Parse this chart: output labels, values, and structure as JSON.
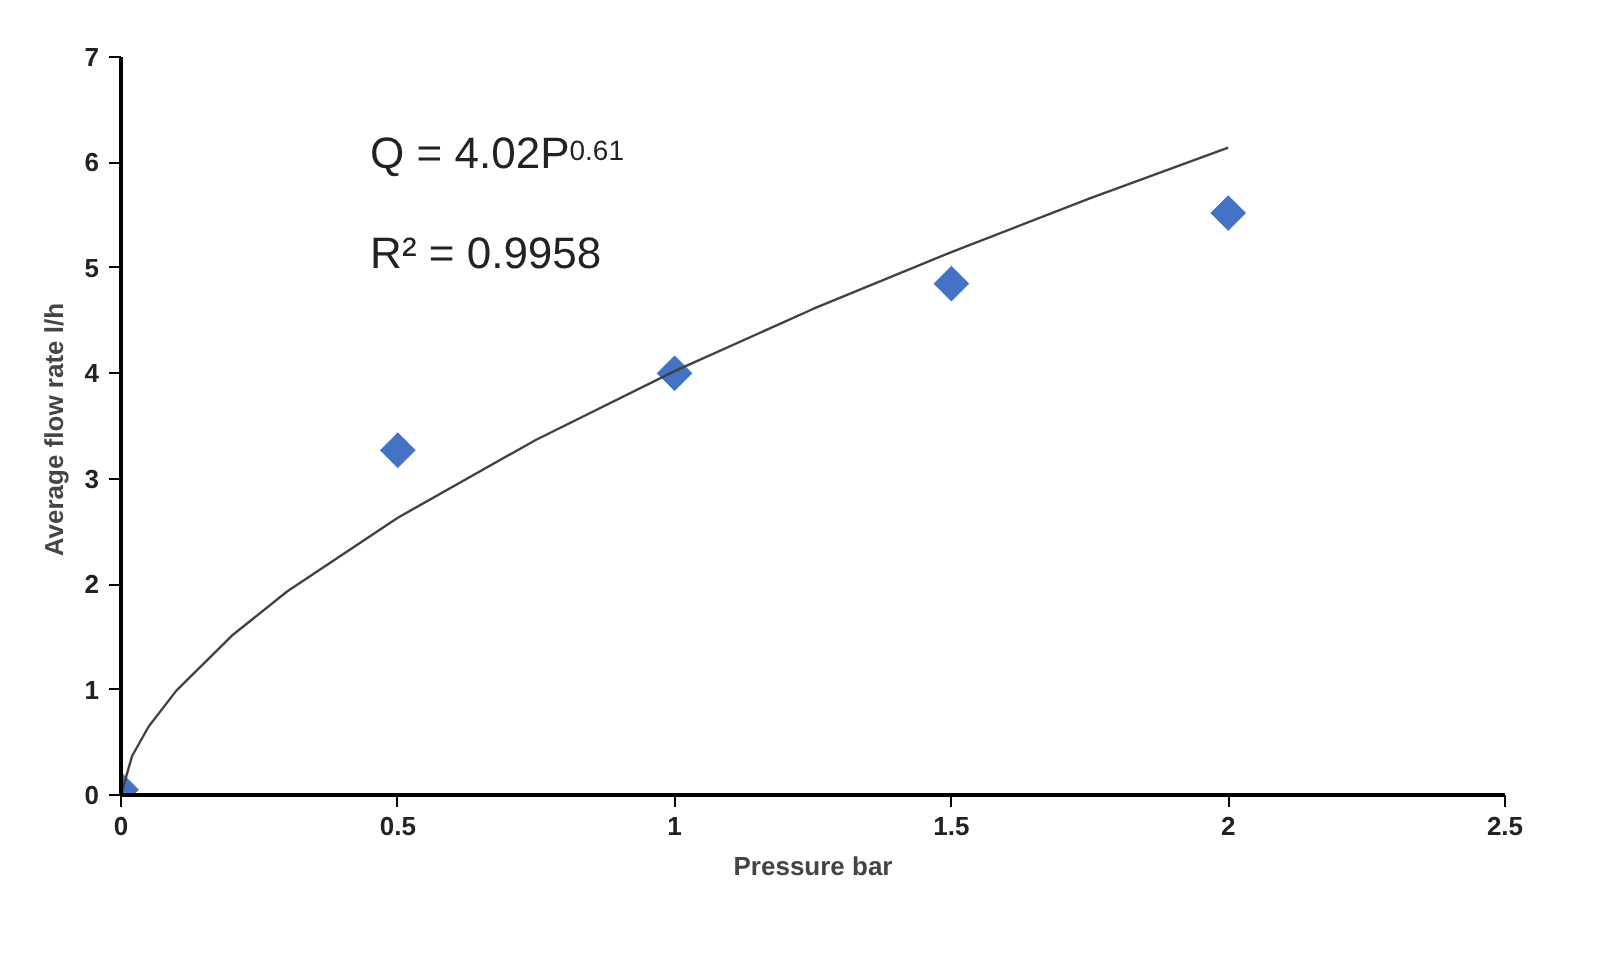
{
  "chart_data": {
    "type": "scatter",
    "xlabel": "Pressure bar",
    "ylabel": "Average flow rate  l/h",
    "x": [
      0,
      0.5,
      1,
      1.5,
      2
    ],
    "series": [
      {
        "color": "#4472c4",
        "marker": "diamond",
        "values": [
          0.05,
          3.27,
          4.0,
          4.85,
          5.52
        ]
      },
      {
        "type": "line",
        "color": "#404040",
        "line_style": "solid",
        "x": [
          0,
          0.02,
          0.05,
          0.1,
          0.2,
          0.3,
          0.5,
          0.75,
          1,
          1.25,
          1.5,
          1.75,
          2
        ],
        "values": [
          0,
          0.37,
          0.65,
          0.99,
          1.51,
          1.93,
          2.63,
          3.37,
          4.02,
          4.61,
          5.15,
          5.66,
          6.14
        ]
      }
    ],
    "annotations": [
      "Q = 4.02P$^{0.61}$",
      "R² = 0.9958"
    ],
    "xlim": [
      0,
      2.5
    ],
    "xticks": [
      0,
      0.5,
      1,
      1.5,
      2,
      2.5
    ],
    "ylim": [
      0,
      7
    ],
    "yticks": [
      0,
      1,
      2,
      3,
      4,
      5,
      6,
      7
    ],
    "grid": false
  }
}
